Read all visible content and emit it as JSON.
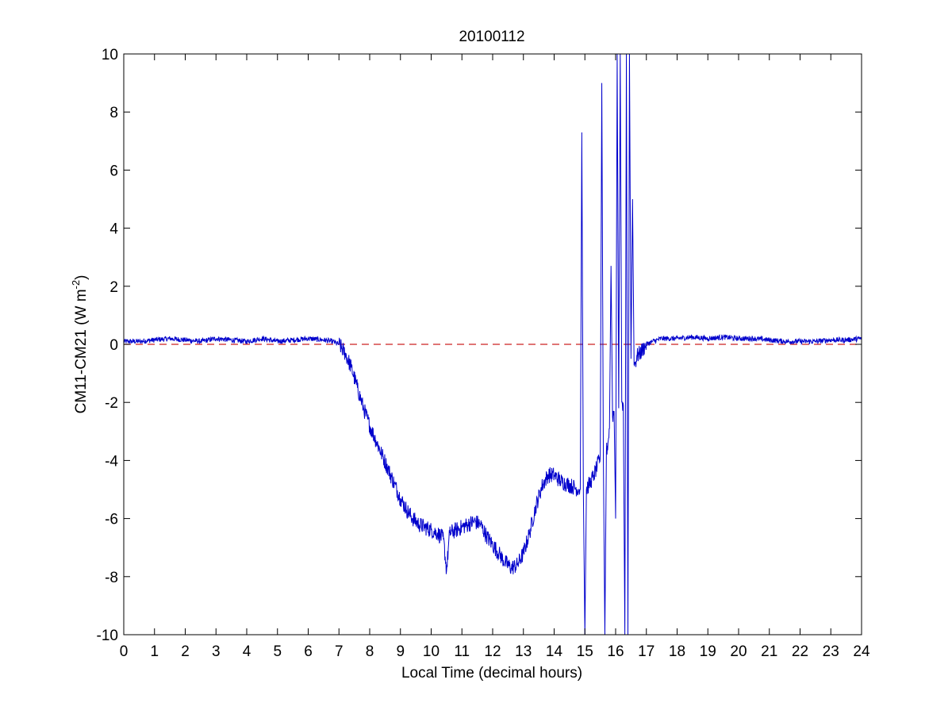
{
  "chart_data": {
    "type": "line",
    "title": "20100112",
    "xlabel": "Local Time (decimal hours)",
    "ylabel_main": "CM11-CM21 (W m",
    "ylabel_sup": "-2",
    "ylabel_close": ")",
    "xlim": [
      0,
      24
    ],
    "ylim": [
      -10,
      10
    ],
    "xticks": [
      0,
      1,
      2,
      3,
      4,
      5,
      6,
      7,
      8,
      9,
      10,
      11,
      12,
      13,
      14,
      15,
      16,
      17,
      18,
      19,
      20,
      21,
      22,
      23,
      24
    ],
    "yticks": [
      -10,
      -8,
      -6,
      -4,
      -2,
      0,
      2,
      4,
      6,
      8,
      10
    ],
    "grid": false,
    "colors": {
      "series": "#0000cc",
      "reference": "#cc2222"
    },
    "reference_line": {
      "y": 0,
      "style": "dashed"
    },
    "series": [
      {
        "x": [
          0,
          0.5,
          1,
          1.5,
          2,
          2.5,
          3,
          3.5,
          4,
          4.5,
          5,
          5.5,
          6,
          6.5,
          6.8,
          7.0,
          7.2,
          7.4,
          7.6,
          7.8,
          8.0,
          8.2,
          8.4,
          8.6,
          8.8,
          9.0,
          9.2,
          9.4,
          9.6,
          9.8,
          10.0,
          10.2,
          10.4,
          10.5,
          10.6,
          10.8,
          11.0,
          11.2,
          11.4,
          11.6,
          11.8,
          12.0,
          12.2,
          12.4,
          12.6,
          12.8,
          13.0,
          13.2,
          13.4,
          13.6,
          13.8,
          14.0,
          14.2,
          14.4,
          14.6,
          14.8,
          14.85,
          14.9,
          14.95,
          15.0,
          15.05,
          15.1,
          15.2,
          15.3,
          15.4,
          15.5,
          15.55,
          15.6,
          15.65,
          15.7,
          15.75,
          15.8,
          15.85,
          15.9,
          15.95,
          16.0,
          16.05,
          16.1,
          16.15,
          16.2,
          16.25,
          16.3,
          16.35,
          16.4,
          16.45,
          16.5,
          16.55,
          16.6,
          16.65,
          16.7,
          16.8,
          17.0,
          17.2,
          17.5,
          18,
          18.5,
          19,
          19.5,
          20,
          20.5,
          21,
          21.5,
          22,
          22.5,
          23,
          23.5,
          24
        ],
        "y": [
          0.1,
          0.1,
          0.15,
          0.2,
          0.15,
          0.1,
          0.2,
          0.15,
          0.1,
          0.2,
          0.1,
          0.15,
          0.2,
          0.15,
          0.1,
          0.0,
          -0.3,
          -0.8,
          -1.5,
          -2.2,
          -2.8,
          -3.3,
          -3.8,
          -4.3,
          -4.8,
          -5.3,
          -5.7,
          -6.0,
          -6.2,
          -6.3,
          -6.4,
          -6.5,
          -6.7,
          -7.8,
          -6.5,
          -6.4,
          -6.3,
          -6.2,
          -6.1,
          -6.2,
          -6.6,
          -6.9,
          -7.2,
          -7.5,
          -7.7,
          -7.6,
          -7.2,
          -6.5,
          -5.6,
          -4.9,
          -4.5,
          -4.5,
          -4.7,
          -4.8,
          -4.9,
          -5.0,
          -5.0,
          7.3,
          -5.0,
          -10,
          -5.0,
          -4.9,
          -4.7,
          -4.5,
          -4.2,
          -3.9,
          9.0,
          -3.8,
          -10,
          -3.7,
          -3.4,
          -2.9,
          2.7,
          -2.5,
          -2.3,
          -6.0,
          10,
          -2.2,
          10,
          -2.0,
          -2.1,
          -10,
          10,
          -10,
          10,
          -0.5,
          5.0,
          -0.7,
          -0.6,
          -0.4,
          -0.3,
          0.0,
          0.1,
          0.2,
          0.2,
          0.25,
          0.2,
          0.25,
          0.2,
          0.2,
          0.15,
          0.1,
          0.1,
          0.1,
          0.15,
          0.15,
          0.2
        ]
      }
    ]
  }
}
